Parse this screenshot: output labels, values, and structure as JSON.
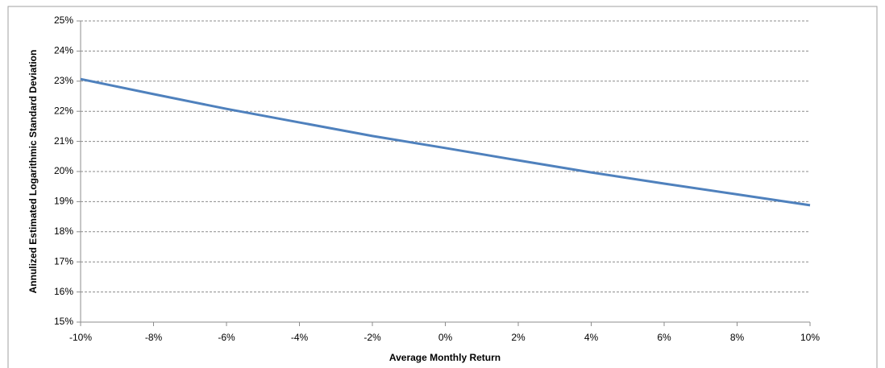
{
  "chart_data": {
    "type": "line",
    "x_label": "Average Monthly Return",
    "y_label": "Annulized Estimated Logarithmic Standard Deviation",
    "x": [
      -10,
      -8,
      -6,
      -4,
      -2,
      0,
      2,
      4,
      6,
      8,
      10
    ],
    "values": [
      23.07,
      22.57,
      22.08,
      21.63,
      21.18,
      20.78,
      20.37,
      19.97,
      19.6,
      19.24,
      18.88
    ],
    "color": "#4f81bd",
    "xlim": [
      -10,
      10
    ],
    "ylim": [
      15,
      25
    ],
    "xticks": [
      {
        "value": -10,
        "label": "-10%"
      },
      {
        "value": -8,
        "label": "-8%"
      },
      {
        "value": -6,
        "label": "-6%"
      },
      {
        "value": -4,
        "label": "-4%"
      },
      {
        "value": -2,
        "label": "-2%"
      },
      {
        "value": 0,
        "label": "0%"
      },
      {
        "value": 2,
        "label": "2%"
      },
      {
        "value": 4,
        "label": "4%"
      },
      {
        "value": 6,
        "label": "6%"
      },
      {
        "value": 8,
        "label": "8%"
      },
      {
        "value": 10,
        "label": "10%"
      }
    ],
    "yticks": [
      {
        "value": 15,
        "label": "15%"
      },
      {
        "value": 16,
        "label": "16%"
      },
      {
        "value": 17,
        "label": "17%"
      },
      {
        "value": 18,
        "label": "18%"
      },
      {
        "value": 19,
        "label": "19%"
      },
      {
        "value": 20,
        "label": "20%"
      },
      {
        "value": 21,
        "label": "21%"
      },
      {
        "value": 22,
        "label": "22%"
      },
      {
        "value": 23,
        "label": "23%"
      },
      {
        "value": 24,
        "label": "24%"
      },
      {
        "value": 25,
        "label": "25%"
      }
    ],
    "grid": true
  }
}
